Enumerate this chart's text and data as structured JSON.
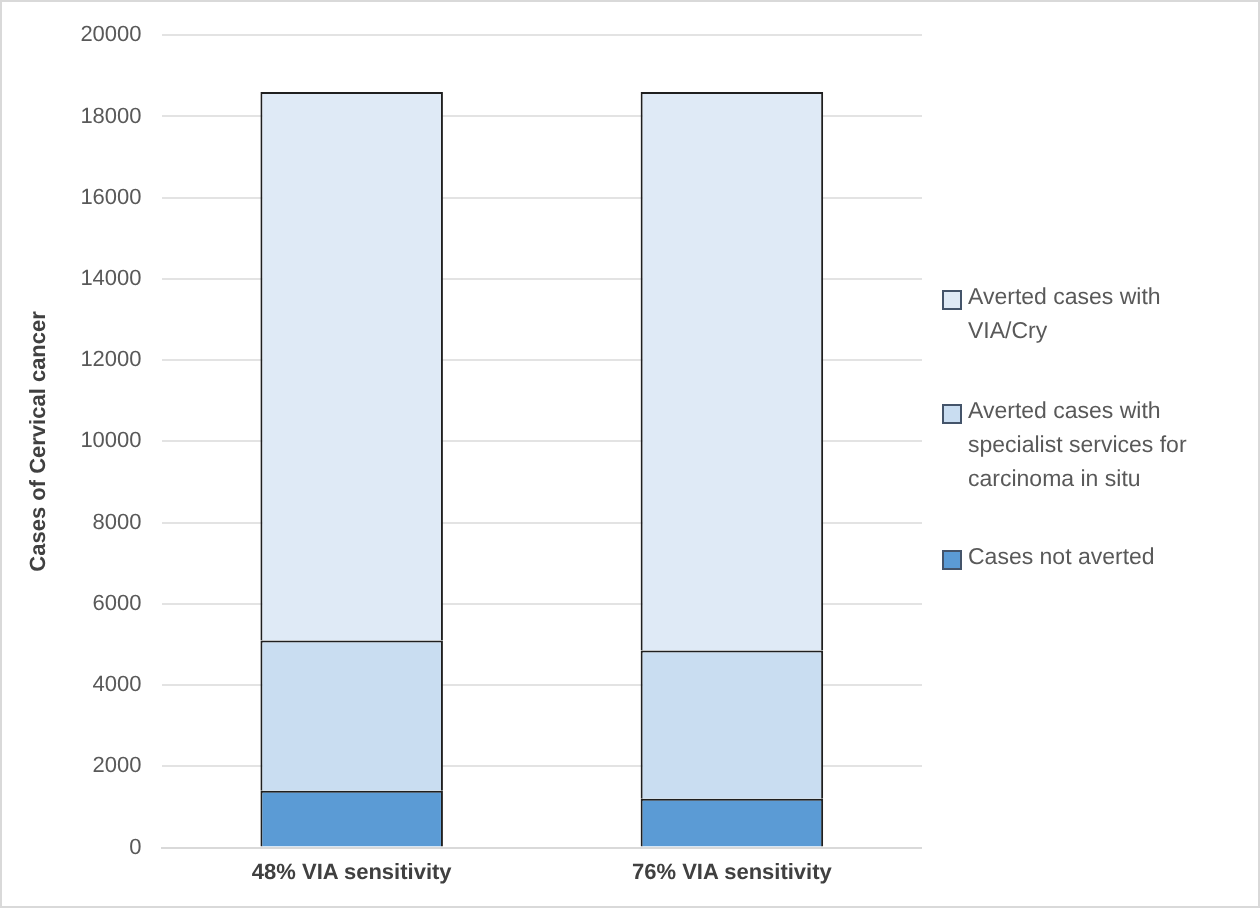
{
  "chart_data": {
    "type": "bar",
    "stacked": true,
    "ylabel": "Cases of Cervical cancer",
    "categories": [
      "48% VIA sensitivity",
      "76% VIA sensitivity"
    ],
    "series": [
      {
        "name": "Cases not averted",
        "color": "#5b9bd5",
        "values": [
          1400,
          1200
        ]
      },
      {
        "name": "Averted cases with specialist services for carcinoma in situ",
        "color": "#c9ddf1",
        "values": [
          3700,
          3650
        ]
      },
      {
        "name": "Averted cases with VIA/Cry",
        "color": "#dfeaf6",
        "values": [
          13500,
          13750
        ]
      }
    ],
    "ylim": [
      0,
      20000
    ],
    "yticks": [
      0,
      2000,
      4000,
      6000,
      8000,
      10000,
      12000,
      14000,
      16000,
      18000,
      20000
    ],
    "grid": "y",
    "legend": "right"
  }
}
